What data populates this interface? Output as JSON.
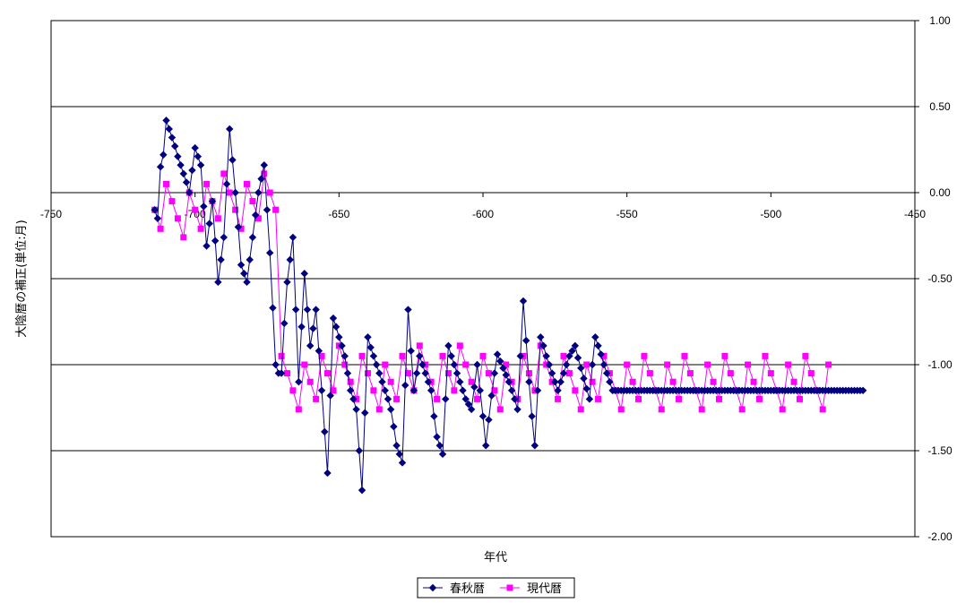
{
  "chart_data": {
    "type": "line",
    "title": "",
    "xlabel": "年代",
    "ylabel": "大陰暦の補正(単位:月)",
    "xlim": [
      -750,
      -450
    ],
    "ylim": [
      -2.0,
      1.0
    ],
    "x_ticks": [
      -750,
      -700,
      -650,
      -600,
      -550,
      -500,
      -450
    ],
    "x_tick_labels": [
      "-750",
      "-700",
      "-650",
      "-600",
      "-550",
      "-500",
      "-450"
    ],
    "y_ticks": [
      1.0,
      0.5,
      0.0,
      -0.5,
      -1.0,
      -1.5,
      -2.0
    ],
    "y_tick_labels": [
      "1.00",
      "0.50",
      "0.00",
      "-0.50",
      "-1.00",
      "-1.50",
      "-2.00"
    ],
    "grid": "horizontal",
    "legend_position": "bottom-center",
    "series": [
      {
        "name": "春秋暦",
        "color": "#000080",
        "marker": "diamond",
        "x": [
          -714,
          -713,
          -712,
          -711,
          -710,
          -709,
          -708,
          -707,
          -706,
          -705,
          -704,
          -703,
          -702,
          -701,
          -700,
          -699,
          -698,
          -697,
          -696,
          -695,
          -694,
          -693,
          -692,
          -691,
          -690,
          -689,
          -688,
          -687,
          -686,
          -685,
          -684,
          -683,
          -682,
          -681,
          -680,
          -679,
          -678,
          -677,
          -676,
          -675,
          -674,
          -673,
          -672,
          -671,
          -670,
          -669,
          -668,
          -667,
          -666,
          -665,
          -664,
          -663,
          -662,
          -661,
          -660,
          -659,
          -658,
          -657,
          -656,
          -655,
          -654,
          -653,
          -652,
          -651,
          -650,
          -649,
          -648,
          -647,
          -646,
          -645,
          -644,
          -643,
          -642,
          -641,
          -640,
          -639,
          -638,
          -637,
          -636,
          -635,
          -634,
          -633,
          -632,
          -631,
          -630,
          -629,
          -628,
          -627,
          -626,
          -625,
          -624,
          -623,
          -622,
          -621,
          -620,
          -619,
          -618,
          -617,
          -616,
          -615,
          -614,
          -613,
          -612,
          -611,
          -610,
          -609,
          -608,
          -607,
          -606,
          -605,
          -604,
          -603,
          -602,
          -601,
          -600,
          -599,
          -598,
          -597,
          -596,
          -595,
          -594,
          -593,
          -592,
          -591,
          -590,
          -589,
          -588,
          -587,
          -586,
          -585,
          -584,
          -583,
          -582,
          -581,
          -580,
          -579,
          -578,
          -577,
          -576,
          -575,
          -574,
          -573,
          -572,
          -571,
          -570,
          -569,
          -568,
          -567,
          -566,
          -565,
          -564,
          -563,
          -562,
          -561,
          -560,
          -559,
          -558,
          -557,
          -556,
          -555,
          -554,
          -553,
          -552,
          -551,
          -550,
          -549,
          -548,
          -547,
          -546,
          -545,
          -544,
          -543,
          -542,
          -541,
          -540,
          -539,
          -538,
          -537,
          -536,
          -535,
          -534,
          -533,
          -532,
          -531,
          -530,
          -529,
          -528,
          -527,
          -526,
          -525,
          -524,
          -523,
          -522,
          -521,
          -520,
          -519,
          -518,
          -517,
          -516,
          -515,
          -514,
          -513,
          -512,
          -511,
          -510,
          -509,
          -508,
          -507,
          -506,
          -505,
          -504,
          -503,
          -502,
          -501,
          -500,
          -499,
          -498,
          -497,
          -496,
          -495,
          -494,
          -493,
          -492,
          -491,
          -490,
          -489,
          -488,
          -487,
          -486,
          -485,
          -484,
          -483,
          -482,
          -481,
          -480,
          -479,
          -478,
          -477,
          -476,
          -475,
          -474,
          -473,
          -472,
          -471,
          -470,
          -469,
          -468
        ],
        "y": [
          -0.1,
          -0.15,
          0.15,
          0.22,
          0.42,
          0.37,
          0.32,
          0.27,
          0.21,
          0.16,
          0.11,
          0.06,
          0.0,
          0.13,
          0.26,
          0.21,
          0.16,
          -0.08,
          -0.31,
          -0.18,
          -0.05,
          -0.28,
          -0.52,
          -0.39,
          -0.26,
          0.05,
          0.37,
          0.19,
          0.0,
          -0.2,
          -0.42,
          -0.47,
          -0.52,
          -0.39,
          -0.26,
          -0.13,
          0.0,
          0.08,
          0.16,
          -0.1,
          -0.35,
          -0.67,
          -1.0,
          -1.05,
          -1.05,
          -0.76,
          -0.52,
          -0.39,
          -0.26,
          -0.68,
          -1.1,
          -0.78,
          -0.47,
          -0.68,
          -0.89,
          -0.79,
          -0.68,
          -0.92,
          -1.15,
          -1.39,
          -1.63,
          -1.18,
          -0.73,
          -0.78,
          -0.84,
          -0.89,
          -0.95,
          -1.05,
          -1.15,
          -1.2,
          -1.26,
          -1.5,
          -1.73,
          -1.28,
          -0.84,
          -0.9,
          -0.95,
          -1.0,
          -1.05,
          -1.1,
          -1.15,
          -1.2,
          -1.26,
          -1.36,
          -1.47,
          -1.52,
          -1.57,
          -1.12,
          -0.68,
          -0.92,
          -1.15,
          -1.05,
          -0.95,
          -1.0,
          -1.05,
          -1.1,
          -1.15,
          -1.3,
          -1.42,
          -1.47,
          -1.52,
          -1.2,
          -0.89,
          -0.95,
          -1.0,
          -1.05,
          -1.1,
          -1.15,
          -1.2,
          -1.23,
          -1.26,
          -1.13,
          -1.0,
          -1.15,
          -1.3,
          -1.47,
          -1.32,
          -1.18,
          -1.05,
          -0.94,
          -0.98,
          -1.02,
          -1.06,
          -1.1,
          -1.15,
          -1.2,
          -1.26,
          -0.95,
          -0.63,
          -0.86,
          -1.1,
          -1.3,
          -1.47,
          -1.15,
          -0.84,
          -0.89,
          -0.95,
          -1.0,
          -1.05,
          -1.1,
          -1.15,
          -1.1,
          -1.05,
          -1.0,
          -0.95,
          -0.92,
          -0.89,
          -0.96,
          -1.02,
          -1.08,
          -1.14,
          -1.2,
          -1.0,
          -0.84,
          -0.89,
          -0.94,
          -1.0,
          -1.05,
          -1.1,
          -1.15,
          -1.15,
          -1.15,
          -1.15,
          -1.15,
          -1.15,
          -1.15,
          -1.15,
          -1.15,
          -1.15,
          -1.15,
          -1.15,
          -1.15,
          -1.15,
          -1.15,
          -1.15,
          -1.15,
          -1.15,
          -1.15,
          -1.15,
          -1.15,
          -1.15,
          -1.15,
          -1.15,
          -1.15,
          -1.15,
          -1.15,
          -1.15,
          -1.15,
          -1.15,
          -1.15,
          -1.15,
          -1.15,
          -1.15,
          -1.15,
          -1.15,
          -1.15,
          -1.15,
          -1.15,
          -1.15,
          -1.15,
          -1.15,
          -1.15,
          -1.15,
          -1.15,
          -1.15,
          -1.15,
          -1.15,
          -1.15,
          -1.15,
          -1.15,
          -1.15,
          -1.15,
          -1.15,
          -1.15,
          -1.15,
          -1.15,
          -1.15,
          -1.15,
          -1.15,
          -1.15,
          -1.15,
          -1.15,
          -1.15,
          -1.15,
          -1.15,
          -1.15,
          -1.15,
          -1.15,
          -1.15,
          -1.15,
          -1.15,
          -1.15,
          -1.15,
          -1.15,
          -1.15,
          -1.15,
          -1.15,
          -1.15,
          -1.15,
          -1.15,
          -1.15,
          -1.15,
          -1.15,
          -1.15,
          -1.15,
          -1.15,
          -1.15
        ]
      },
      {
        "name": "現代暦",
        "color": "#ff00ff",
        "marker": "square",
        "x": [
          -714,
          -712,
          -710,
          -708,
          -706,
          -704,
          -702,
          -700,
          -698,
          -696,
          -694,
          -692,
          -690,
          -688,
          -686,
          -684,
          -682,
          -680,
          -678,
          -676,
          -674,
          -672,
          -670,
          -668,
          -666,
          -664,
          -662,
          -660,
          -658,
          -656,
          -654,
          -652,
          -650,
          -648,
          -646,
          -644,
          -642,
          -640,
          -638,
          -636,
          -634,
          -632,
          -630,
          -628,
          -626,
          -624,
          -622,
          -620,
          -618,
          -616,
          -614,
          -612,
          -610,
          -608,
          -606,
          -604,
          -602,
          -600,
          -598,
          -596,
          -594,
          -592,
          -590,
          -588,
          -586,
          -584,
          -582,
          -580,
          -578,
          -576,
          -574,
          -572,
          -570,
          -568,
          -566,
          -564,
          -562,
          -560,
          -558,
          -556,
          -554,
          -552,
          -550,
          -548,
          -546,
          -544,
          -542,
          -540,
          -538,
          -536,
          -534,
          -532,
          -530,
          -528,
          -526,
          -524,
          -522,
          -520,
          -518,
          -516,
          -514,
          -512,
          -510,
          -508,
          -506,
          -504,
          -502,
          -500,
          -498,
          -496,
          -494,
          -492,
          -490,
          -488,
          -486,
          -484,
          -482,
          -480
        ],
        "y": [
          -0.1,
          -0.21,
          0.05,
          -0.05,
          -0.15,
          -0.26,
          0.0,
          -0.1,
          -0.21,
          0.05,
          -0.05,
          -0.15,
          0.11,
          0.0,
          -0.1,
          -0.21,
          0.05,
          -0.05,
          -0.15,
          0.11,
          0.0,
          -0.1,
          -0.95,
          -1.05,
          -1.15,
          -1.26,
          -1.0,
          -1.1,
          -1.2,
          -0.95,
          -1.05,
          -1.15,
          -0.89,
          -1.0,
          -1.1,
          -1.2,
          -0.95,
          -1.05,
          -1.15,
          -1.26,
          -1.0,
          -1.1,
          -1.2,
          -0.95,
          -1.05,
          -1.15,
          -0.89,
          -1.0,
          -1.1,
          -1.2,
          -0.95,
          -1.05,
          -1.15,
          -0.89,
          -1.0,
          -1.1,
          -1.2,
          -0.95,
          -1.05,
          -1.15,
          -1.26,
          -1.0,
          -1.1,
          -1.2,
          -0.95,
          -1.05,
          -1.15,
          -0.89,
          -1.0,
          -1.1,
          -1.2,
          -0.95,
          -1.05,
          -1.15,
          -1.26,
          -1.0,
          -1.1,
          -1.2,
          -0.95,
          -1.05,
          -1.15,
          -1.26,
          -1.0,
          -1.1,
          -1.2,
          -0.95,
          -1.05,
          -1.15,
          -1.26,
          -1.0,
          -1.1,
          -1.2,
          -0.95,
          -1.05,
          -1.15,
          -1.26,
          -1.0,
          -1.1,
          -1.2,
          -0.95,
          -1.05,
          -1.15,
          -1.26,
          -1.0,
          -1.1,
          -1.2,
          -0.95,
          -1.05,
          -1.15,
          -1.26,
          -1.0,
          -1.1,
          -1.2,
          -0.95,
          -1.05,
          -1.15,
          -1.26,
          -1.0
        ]
      }
    ]
  }
}
